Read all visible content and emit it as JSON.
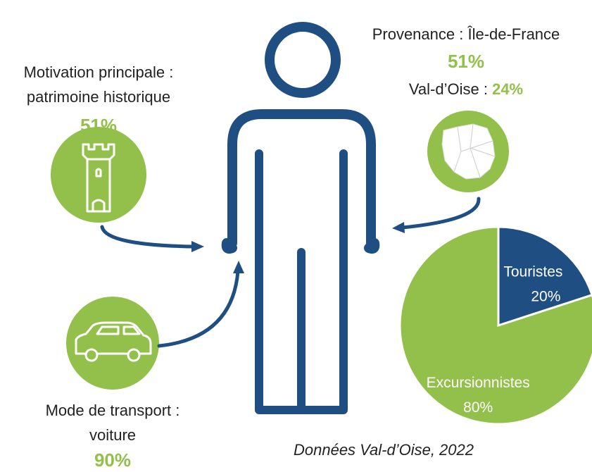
{
  "motivation": {
    "lines": [
      "Motivation principale :",
      "patrimoine historique"
    ],
    "value": "51%"
  },
  "provenance": {
    "label": "Provenance : Île-de-France",
    "value": "51%",
    "sub_label": "Val-d’Oise :",
    "sub_value": "24%"
  },
  "transport": {
    "lines": [
      "Mode de transport :",
      "voiture"
    ],
    "value": "90%"
  },
  "source": "Données Val-d’Oise, 2022",
  "chart_data": {
    "type": "pie",
    "categories": [
      "Touristes",
      "Excursionnistes"
    ],
    "values": [
      20,
      80
    ],
    "value_labels": [
      "20%",
      "80%"
    ],
    "colors": [
      "#1f4e83",
      "#92c04a"
    ]
  }
}
